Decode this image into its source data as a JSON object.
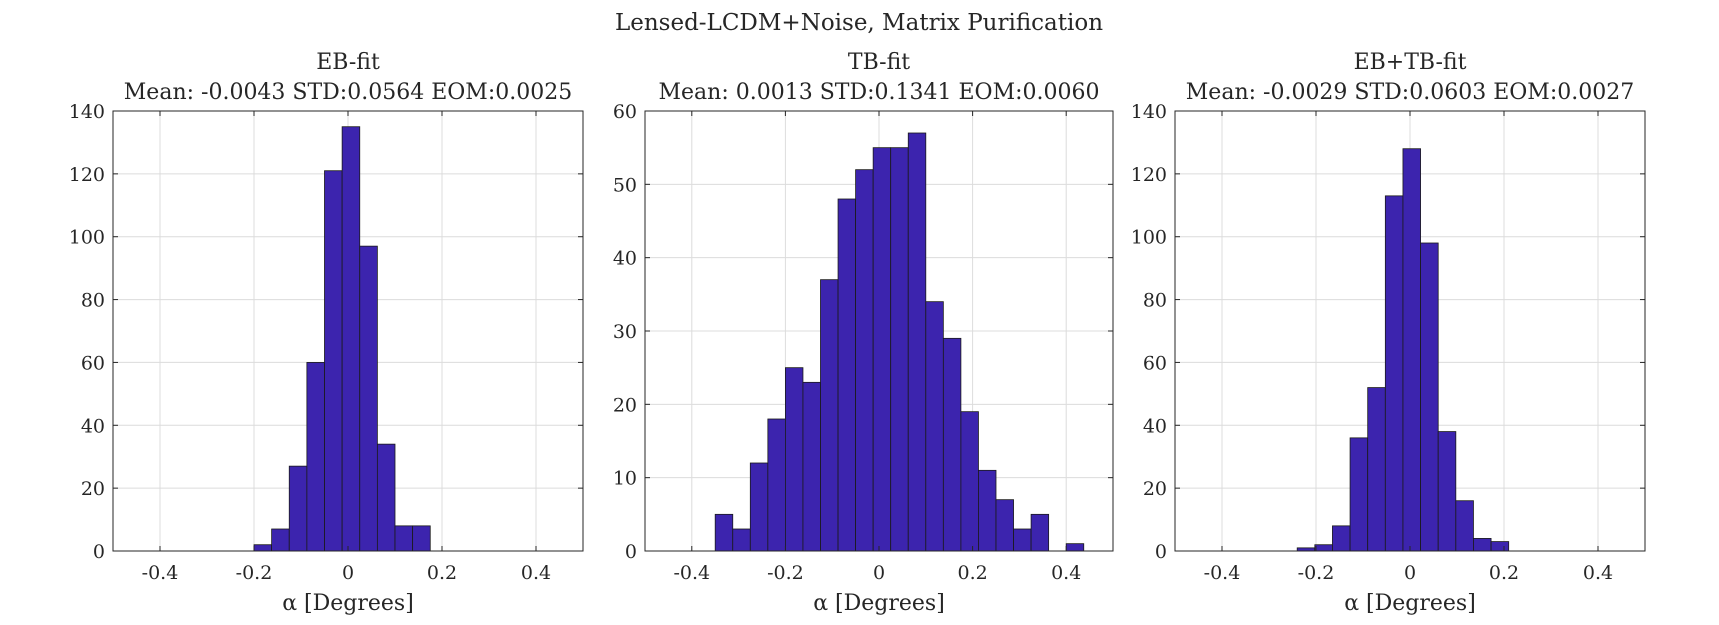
{
  "figure": {
    "suptitle": "Lensed-LCDM+Noise, Matrix Purification",
    "bar_color": "#3c24ae",
    "bar_edge_color": "#1a1a1a",
    "grid": true
  },
  "chart_data": [
    {
      "type": "bar",
      "title": "EB-fit",
      "subtitle": "Mean: -0.0043 STD:0.0564 EOM:0.0025",
      "xlabel": "α [Degrees]",
      "ylabel": "",
      "xlim": [
        -0.5,
        0.5
      ],
      "ylim": [
        0,
        140
      ],
      "xticks": [
        -0.4,
        -0.2,
        0,
        0.2,
        0.4
      ],
      "xtick_labels": [
        "-0.4",
        "-0.2",
        "0",
        "0.2",
        "0.4"
      ],
      "yticks": [
        0,
        20,
        40,
        60,
        80,
        100,
        120,
        140
      ],
      "bins": {
        "start": -0.2,
        "width": 0.0375
      },
      "values": [
        2,
        7,
        27,
        60,
        121,
        135,
        97,
        34,
        8,
        8
      ]
    },
    {
      "type": "bar",
      "title": "TB-fit",
      "subtitle": "Mean: 0.0013 STD:0.1341 EOM:0.0060",
      "xlabel": "α [Degrees]",
      "ylabel": "",
      "xlim": [
        -0.5,
        0.5
      ],
      "ylim": [
        0,
        60
      ],
      "xticks": [
        -0.4,
        -0.2,
        0,
        0.2,
        0.4
      ],
      "xtick_labels": [
        "-0.4",
        "-0.2",
        "0",
        "0.2",
        "0.4"
      ],
      "yticks": [
        0,
        10,
        20,
        30,
        40,
        50,
        60
      ],
      "bins": {
        "start": -0.35,
        "width": 0.0375
      },
      "values": [
        5,
        3,
        12,
        18,
        25,
        23,
        37,
        48,
        52,
        55,
        55,
        57,
        34,
        29,
        19,
        11,
        7,
        3,
        5,
        0,
        1
      ]
    },
    {
      "type": "bar",
      "title": "EB+TB-fit",
      "subtitle": "Mean: -0.0029 STD:0.0603 EOM:0.0027",
      "xlabel": "α [Degrees]",
      "ylabel": "",
      "xlim": [
        -0.5,
        0.5
      ],
      "ylim": [
        0,
        140
      ],
      "xticks": [
        -0.4,
        -0.2,
        0,
        0.2,
        0.4
      ],
      "xtick_labels": [
        "-0.4",
        "-0.2",
        "0",
        "0.2",
        "0.4"
      ],
      "yticks": [
        0,
        20,
        40,
        60,
        80,
        100,
        120,
        140
      ],
      "bins": {
        "start": -0.24,
        "width": 0.0375
      },
      "values": [
        1,
        2,
        8,
        36,
        52,
        113,
        128,
        98,
        38,
        16,
        4,
        3
      ]
    }
  ]
}
